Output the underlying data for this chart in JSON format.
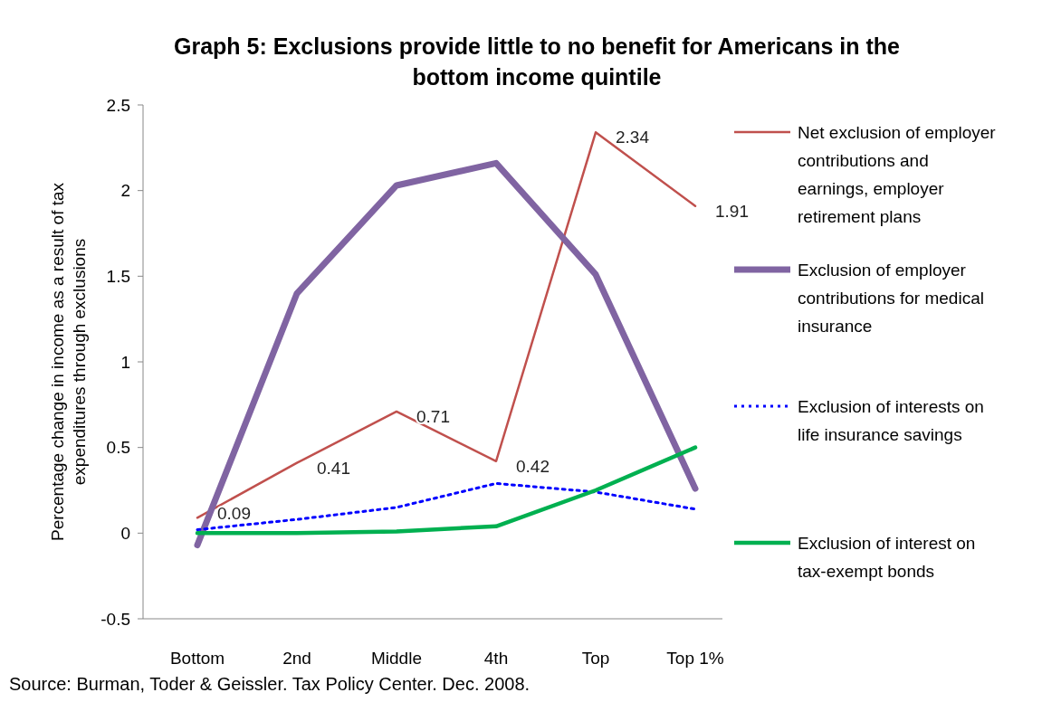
{
  "chart_data": {
    "type": "line",
    "title": "Graph 5: Exclusions provide little to no benefit for Americans in the bottom income quintile",
    "ylabel": "Percentage change in income as a result of tax expenditures through exclusions",
    "categories": [
      "Bottom",
      "2nd",
      "Middle",
      "4th",
      "Top",
      "Top 1%"
    ],
    "series": [
      {
        "name": "Net exclusion of employer contributions and earnings, employer retirement plans",
        "color": "#c0504d",
        "values": [
          0.09,
          0.41,
          0.71,
          0.42,
          2.34,
          1.91
        ],
        "value_labels": [
          "0.09",
          "0.41",
          "0.71",
          "0.42",
          "2.34",
          "1.91"
        ]
      },
      {
        "name": "Exclusion of employer contributions for medical insurance",
        "color": "#8064a2",
        "values": [
          -0.07,
          1.4,
          2.03,
          2.16,
          1.51,
          0.26
        ]
      },
      {
        "name": "Exclusion of interests on life insurance savings",
        "color": "#0000ff",
        "values": [
          0.02,
          0.08,
          0.15,
          0.29,
          0.24,
          0.14
        ],
        "line_style": "dotted"
      },
      {
        "name": "Exclusion of interest on tax-exempt bonds",
        "color": "#00b050",
        "values": [
          0,
          0,
          0.01,
          0.04,
          0.25,
          0.5
        ]
      }
    ],
    "ylim": [
      -0.5,
      2.5
    ],
    "yticks": [
      -0.5,
      0,
      0.5,
      1,
      1.5,
      2,
      2.5
    ],
    "grid": false,
    "legend": "right",
    "marker": "none",
    "line_style": "solid",
    "annotations": [
      "Source: Burman, Toder & Geissler.  Tax Policy Center. Dec. 2008."
    ]
  }
}
